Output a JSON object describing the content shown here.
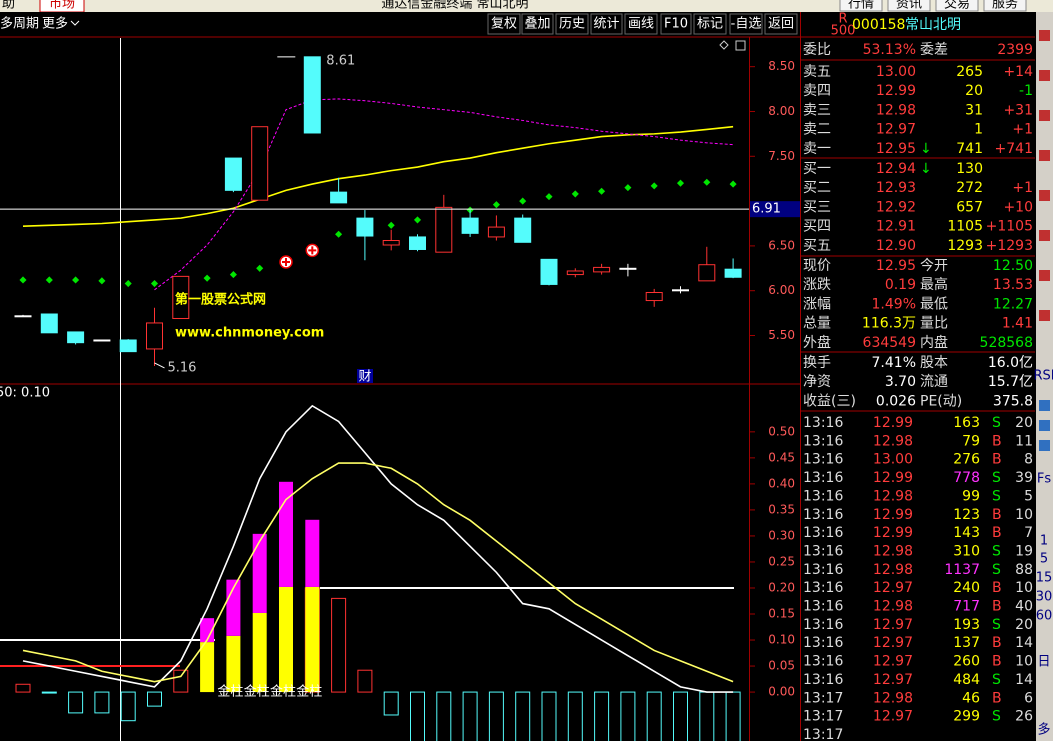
{
  "window": {
    "menu_left": "助",
    "market": "市场",
    "title": "通达信金融终端 常山北明",
    "menu_right": [
      "行情",
      "资讯",
      "交易",
      "服务"
    ]
  },
  "toolbar": {
    "period": "多周期",
    "more": "更多",
    "buttons": [
      "复权",
      "叠加",
      "历史",
      "统计",
      "画线",
      "F10",
      "标记",
      "-自选",
      "返回"
    ]
  },
  "chart_data": [
    {
      "type": "candlestick",
      "open": [
        5.72,
        5.74,
        5.54,
        5.45,
        5.45,
        5.35,
        5.69,
        null,
        7.48,
        7.01,
        null,
        8.61,
        7.1,
        6.81,
        6.51,
        6.6,
        6.43,
        6.81,
        6.6,
        6.81,
        6.35,
        6.18,
        6.21,
        6.25,
        5.89,
        6.01,
        6.11,
        6.24
      ],
      "high": [
        5.73,
        5.74,
        5.54,
        5.45,
        5.46,
        5.81,
        6.16,
        null,
        7.48,
        7.83,
        null,
        8.61,
        7.26,
        6.9,
        6.68,
        6.63,
        7.07,
        6.9,
        6.84,
        6.85,
        6.35,
        6.25,
        6.3,
        6.3,
        6.02,
        6.05,
        6.49,
        6.36
      ],
      "low": [
        5.71,
        5.53,
        5.4,
        5.44,
        5.32,
        5.16,
        5.69,
        null,
        7.1,
        7.01,
        null,
        7.76,
        6.98,
        6.34,
        6.45,
        6.44,
        6.43,
        6.6,
        6.56,
        6.54,
        6.06,
        6.15,
        6.18,
        6.16,
        5.82,
        5.97,
        6.11,
        6.14
      ],
      "close": [
        5.72,
        5.53,
        5.42,
        5.45,
        5.32,
        5.64,
        6.16,
        null,
        7.12,
        7.83,
        null,
        7.76,
        6.98,
        6.61,
        6.56,
        6.46,
        6.93,
        6.64,
        6.71,
        6.54,
        6.07,
        6.22,
        6.26,
        6.25,
        5.98,
        6.01,
        6.29,
        6.15
      ],
      "series": [
        {
          "color": "#ffff00",
          "style": "line",
          "values": [
            6.72,
            6.73,
            6.74,
            6.75,
            6.77,
            6.79,
            6.81,
            6.86,
            6.92,
            7.02,
            7.12,
            7.19,
            7.25,
            7.29,
            7.34,
            7.38,
            7.44,
            7.48,
            7.54,
            7.59,
            7.64,
            7.68,
            7.72,
            7.74,
            7.75,
            7.77,
            7.8,
            7.83
          ]
        },
        {
          "color": "#ff00ff",
          "style": "dashed",
          "values": [
            null,
            null,
            null,
            null,
            null,
            6.01,
            6.23,
            6.51,
            6.88,
            7.35,
            8.02,
            8.13,
            8.14,
            8.12,
            8.09,
            8.05,
            8.02,
            7.99,
            7.94,
            7.9,
            7.85,
            7.82,
            7.78,
            7.75,
            7.72,
            7.68,
            7.65,
            7.63
          ]
        },
        {
          "color": "#00e600",
          "style": "dots",
          "values": [
            6.12,
            6.12,
            6.12,
            6.11,
            6.08,
            6.08,
            6.12,
            6.14,
            6.18,
            6.25,
            null,
            null,
            6.63,
            6.68,
            6.73,
            6.79,
            6.86,
            6.9,
            6.96,
            7.0,
            7.05,
            7.08,
            7.11,
            7.15,
            7.17,
            7.2,
            7.21,
            7.19
          ]
        }
      ],
      "buy_points": [
        null,
        null,
        null,
        null,
        null,
        null,
        null,
        null,
        null,
        null,
        6.32,
        6.45,
        null,
        null,
        null,
        null,
        null,
        null,
        null,
        null,
        null,
        null,
        null,
        null,
        null,
        null,
        null,
        null
      ],
      "ylim": [
        4.97,
        8.82
      ],
      "yticks": [
        {
          "value": 8.5,
          "label": "8.50"
        },
        {
          "value": 8,
          "label": "8.00"
        },
        {
          "value": 7.5,
          "label": "7.50"
        },
        {
          "value": 6.5,
          "label": "6.50"
        },
        {
          "value": 6,
          "label": "6.00"
        },
        {
          "value": 5.5,
          "label": "5.50"
        }
      ],
      "cursor_value": 6.91,
      "watermark": [
        "第一股票公式网",
        "www.chnmoney.com"
      ],
      "marker": "财"
    },
    {
      "type": "indicator",
      "title": "50: 0.10",
      "series": [
        {
          "color": "#ffffff",
          "values": [
            0.06,
            0.05,
            0.04,
            0.03,
            0.02,
            0.01,
            0.06,
            0.16,
            0.28,
            0.41,
            0.5,
            0.55,
            0.52,
            0.46,
            0.4,
            0.36,
            0.33,
            0.28,
            0.23,
            0.17,
            0.16,
            0.13,
            0.1,
            0.07,
            0.04,
            0.01,
            0.0,
            0.0
          ]
        },
        {
          "color": "#ffff66",
          "values": [
            0.08,
            0.07,
            0.06,
            0.04,
            0.03,
            0.02,
            0.03,
            0.1,
            0.2,
            0.29,
            0.37,
            0.41,
            0.44,
            0.44,
            0.43,
            0.4,
            0.36,
            0.33,
            0.29,
            0.25,
            0.21,
            0.17,
            0.14,
            0.11,
            0.08,
            0.06,
            0.04,
            0.02
          ]
        }
      ],
      "hist": [
        0.015,
        0,
        -0.04,
        -0.04,
        -0.055,
        -0.027,
        0.042,
        null,
        null,
        null,
        null,
        0.2,
        0.18,
        0.042,
        -0.044,
        -0.1,
        -0.1,
        -0.1,
        -0.1,
        -0.1,
        -0.1,
        -0.1,
        -0.1,
        -0.1,
        -0.1,
        -0.1,
        -0.1,
        -0.1
      ],
      "gold_base": [
        null,
        null,
        null,
        null,
        null,
        null,
        null,
        0.096,
        0.108,
        0.152,
        0.202,
        0.202,
        null,
        null,
        null,
        null,
        null,
        null,
        null,
        null,
        null,
        null,
        null,
        null,
        null,
        null,
        null,
        null
      ],
      "gold_top": [
        null,
        null,
        null,
        null,
        null,
        null,
        null,
        0.046,
        0.108,
        0.152,
        0.202,
        0.129,
        null,
        null,
        null,
        null,
        null,
        null,
        null,
        null,
        null,
        null,
        null,
        null,
        null,
        null,
        null,
        null
      ],
      "gold_labels": [
        "金柱",
        "金柱",
        "金柱",
        "金柱"
      ],
      "levels": [
        {
          "value": 0.1,
          "color": "#ffffff"
        },
        {
          "value": 0.2,
          "color": "#ffffff"
        },
        {
          "value": 0.05,
          "color": "#ff2020"
        }
      ],
      "ylim": [
        -0.094,
        0.59
      ],
      "yticks": [
        {
          "value": 0.5,
          "label": "0.50"
        },
        0.45,
        {
          "value": 0.4,
          "label": "0.40"
        },
        0.35,
        {
          "value": 0.3,
          "label": "0.30"
        },
        0.25,
        {
          "value": 0.2,
          "label": "0.20"
        },
        0.15,
        {
          "value": 0.1,
          "label": "0.10"
        },
        0.05,
        {
          "value": 0,
          "label": "0.00"
        }
      ]
    }
  ],
  "quote": {
    "badge": "R",
    "badge_sub": "500",
    "code": "000158",
    "name": "常山北明",
    "ratio": [
      "委比",
      "53.13%",
      "委差",
      "2399"
    ],
    "asks": [
      {
        "label": "卖五",
        "price": "13.00",
        "vol": "265",
        "chg": "+14"
      },
      {
        "label": "卖四",
        "price": "12.99",
        "vol": "20",
        "chg": "-1"
      },
      {
        "label": "卖三",
        "price": "12.98",
        "vol": "31",
        "chg": "+31"
      },
      {
        "label": "卖二",
        "price": "12.97",
        "vol": "1",
        "chg": "+1"
      },
      {
        "label": "卖一",
        "price": "12.95",
        "arrow": "↓",
        "vol": "741",
        "chg": "+741"
      }
    ],
    "bids": [
      {
        "label": "买一",
        "price": "12.94",
        "arrow": "↓",
        "vol": "130"
      },
      {
        "label": "买二",
        "price": "12.93",
        "vol": "272",
        "chg": "+1"
      },
      {
        "label": "买三",
        "price": "12.92",
        "vol": "657",
        "chg": "+10"
      },
      {
        "label": "买四",
        "price": "12.91",
        "vol": "1105",
        "chg": "+1105"
      },
      {
        "label": "买五",
        "price": "12.90",
        "vol": "1293",
        "chg": "+1293"
      }
    ],
    "stats": [
      [
        "现价",
        "12.95",
        "今开",
        "12.50"
      ],
      [
        "涨跌",
        "0.19",
        "最高",
        "13.53"
      ],
      [
        "涨幅",
        "1.49%",
        "最低",
        "12.27"
      ],
      [
        "总量",
        "116.3万",
        "量比",
        "1.41"
      ],
      [
        "外盘",
        "634549",
        "内盘",
        "528568"
      ],
      [
        "换手",
        "7.41%",
        "股本",
        "16.0亿"
      ],
      [
        "净资",
        "3.70",
        "流通",
        "15.7亿"
      ],
      [
        "收益(三)",
        "0.026",
        "PE(动)",
        "375.8"
      ]
    ],
    "trades": [
      [
        "13:16",
        "12.99",
        "163",
        "S",
        "20"
      ],
      [
        "13:16",
        "12.98",
        "79",
        "B",
        "11"
      ],
      [
        "13:16",
        "13.00",
        "276",
        "B",
        "8"
      ],
      [
        "13:16",
        "12.99",
        "778",
        "S",
        "39"
      ],
      [
        "13:16",
        "12.98",
        "99",
        "S",
        "5"
      ],
      [
        "13:16",
        "12.99",
        "123",
        "B",
        "10"
      ],
      [
        "13:16",
        "12.99",
        "143",
        "B",
        "7"
      ],
      [
        "13:16",
        "12.98",
        "310",
        "S",
        "19"
      ],
      [
        "13:16",
        "12.98",
        "1137",
        "S",
        "88"
      ],
      [
        "13:16",
        "12.97",
        "240",
        "B",
        "10"
      ],
      [
        "13:16",
        "12.98",
        "717",
        "B",
        "40"
      ],
      [
        "13:16",
        "12.97",
        "193",
        "S",
        "20"
      ],
      [
        "13:16",
        "12.97",
        "137",
        "B",
        "14"
      ],
      [
        "13:16",
        "12.97",
        "260",
        "B",
        "10"
      ],
      [
        "13:16",
        "12.97",
        "484",
        "S",
        "14"
      ],
      [
        "13:17",
        "12.98",
        "46",
        "B",
        "6"
      ],
      [
        "13:17",
        "12.97",
        "299",
        "S",
        "26"
      ],
      [
        "13:17"
      ]
    ]
  },
  "sidebar": [
    "RSI",
    "Fs",
    "1",
    "5",
    "15",
    "30",
    "60",
    "日",
    "多"
  ]
}
